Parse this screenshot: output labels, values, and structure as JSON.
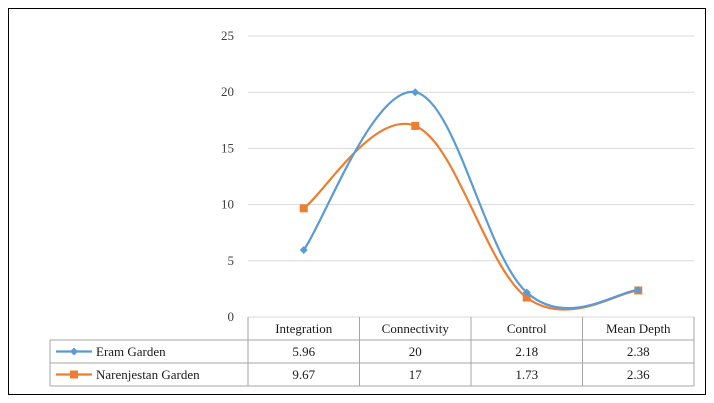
{
  "chart_data": {
    "type": "line",
    "categories": [
      "Integration",
      "Connectivity",
      "Control",
      "Mean Depth"
    ],
    "series": [
      {
        "name": "Eram Garden",
        "values": [
          5.96,
          20,
          2.18,
          2.38
        ],
        "color": "#5b9bd5",
        "marker": "diamond",
        "table_values": [
          "5.96",
          "20",
          "2.18",
          "2.38"
        ]
      },
      {
        "name": "Narenjestan Garden",
        "values": [
          9.67,
          17,
          1.73,
          2.36
        ],
        "color": "#ed7d31",
        "marker": "square",
        "table_values": [
          "9.67",
          "17",
          "1.73",
          "2.36"
        ]
      }
    ],
    "ylim": [
      0,
      25
    ],
    "yticks": [
      "0",
      "5",
      "10",
      "15",
      "20",
      "25"
    ],
    "smooth": true,
    "grid": true,
    "legend": "data-table"
  }
}
